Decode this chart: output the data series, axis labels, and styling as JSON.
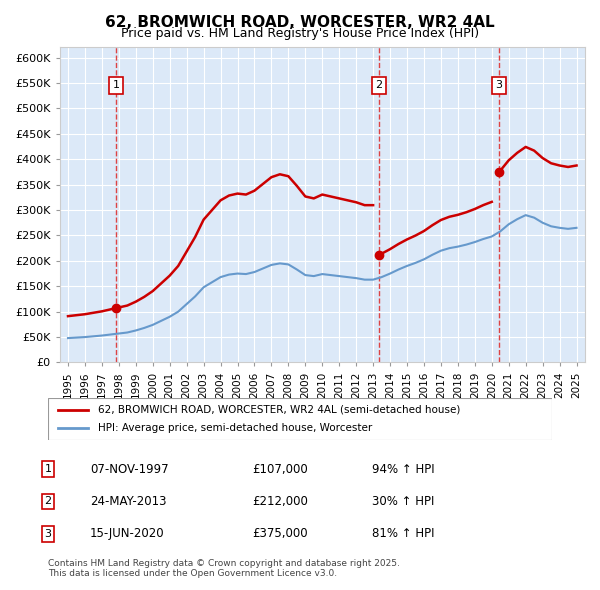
{
  "title": "62, BROMWICH ROAD, WORCESTER, WR2 4AL",
  "subtitle": "Price paid vs. HM Land Registry's House Price Index (HPI)",
  "sale_dates": [
    "1997-11-07",
    "2013-05-24",
    "2020-06-15"
  ],
  "sale_prices": [
    107000,
    212000,
    375000
  ],
  "sale_labels": [
    "1",
    "2",
    "3"
  ],
  "sale_info": [
    {
      "label": "1",
      "date": "07-NOV-1997",
      "price": "£107,000",
      "hpi": "94% ↑ HPI"
    },
    {
      "label": "2",
      "date": "24-MAY-2013",
      "price": "£212,000",
      "hpi": "30% ↑ HPI"
    },
    {
      "label": "3",
      "date": "15-JUN-2020",
      "price": "£375,000",
      "hpi": "81% ↑ HPI"
    }
  ],
  "legend_line1": "62, BROMWICH ROAD, WORCESTER, WR2 4AL (semi-detached house)",
  "legend_line2": "HPI: Average price, semi-detached house, Worcester",
  "footer": "Contains HM Land Registry data © Crown copyright and database right 2025.\nThis data is licensed under the Open Government Licence v3.0.",
  "ylim": [
    0,
    620000
  ],
  "yticks": [
    0,
    50000,
    100000,
    150000,
    200000,
    250000,
    300000,
    350000,
    400000,
    450000,
    500000,
    550000,
    600000
  ],
  "background_color": "#dce9f8",
  "plot_bg_color": "#dce9f8",
  "red_color": "#cc0000",
  "blue_color": "#6699cc",
  "dashed_red": "#dd4444"
}
